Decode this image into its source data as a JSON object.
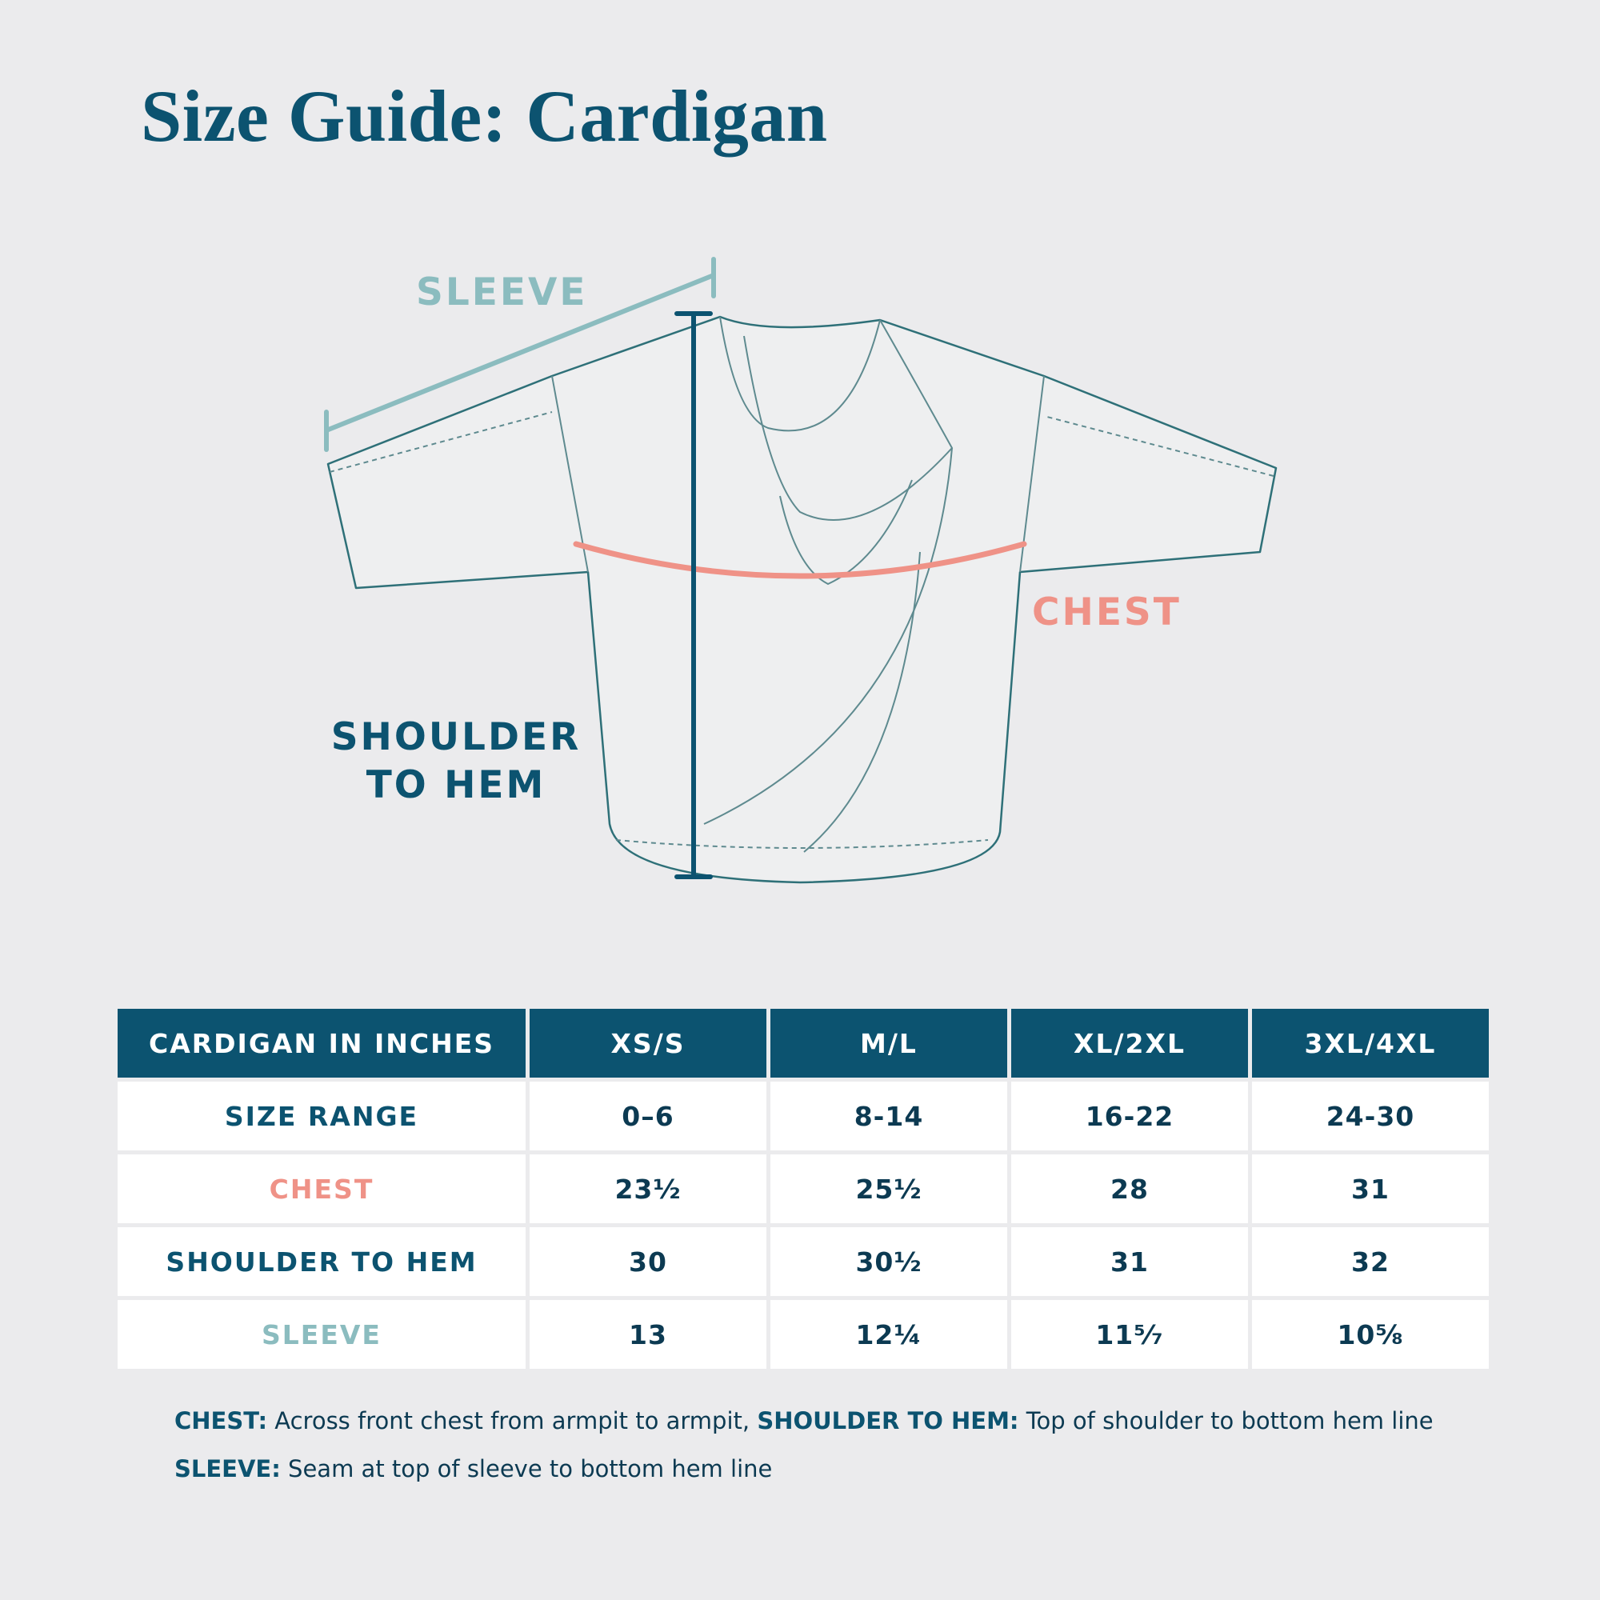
{
  "title": "Size Guide: Cardigan",
  "diagram": {
    "sleeve_label": "SLEEVE",
    "chest_label": "CHEST",
    "shoulder_to_hem_label": "SHOULDER\nTO HEM"
  },
  "table": {
    "headers": [
      "CARDIGAN IN INCHES",
      "XS/S",
      "M/L",
      "XL/2XL",
      "3XL/4XL"
    ],
    "rows": [
      {
        "label": "SIZE RANGE",
        "values": [
          "0–6",
          "8-14",
          "16-22",
          "24-30"
        ]
      },
      {
        "label": "CHEST",
        "values": [
          "23½",
          "25½",
          "28",
          "31"
        ]
      },
      {
        "label": "SHOULDER TO HEM",
        "values": [
          "30",
          "30½",
          "31",
          "32"
        ]
      },
      {
        "label": "SLEEVE",
        "values": [
          "13",
          "12¼",
          "11⁵⁄₇",
          "10⅝"
        ]
      }
    ]
  },
  "notes": {
    "chest_term": "CHEST:",
    "chest_text": " Across front chest from armpit to armpit, ",
    "s2h_term": "SHOULDER TO HEM:",
    "s2h_text": " Top of shoulder to bottom hem line",
    "sleeve_term": "SLEEVE:",
    "sleeve_text": " Seam at top of sleeve to bottom hem line"
  },
  "colors": {
    "navy": "#0c5370",
    "chest": "#ef9287",
    "sleeve": "#8bbcbf",
    "background": "#ebebed"
  }
}
